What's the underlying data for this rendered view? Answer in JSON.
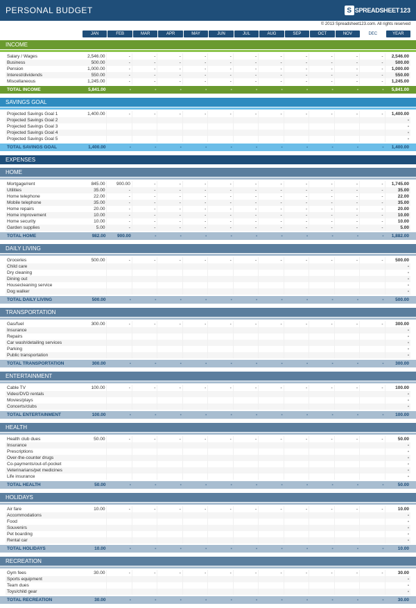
{
  "title": "PERSONAL BUDGET",
  "logo": {
    "s": "S",
    "text": "SPREADSHEET",
    "nums": "123"
  },
  "copyright": "© 2013 Spreadsheet123.com. All rights reserved",
  "months": [
    "JAN",
    "FEB",
    "MAR",
    "APR",
    "MAY",
    "JUN",
    "JUL",
    "AUG",
    "SEP",
    "OCT",
    "NOV",
    "DEC",
    "YEAR"
  ],
  "colors": {
    "header": "#1f4e79",
    "income_hdr": "#6a9a2f",
    "income_bar": "#8bc34a",
    "income_total": "#6a9a2f",
    "savings_hdr": "#2e8bc0",
    "savings_bar": "#6bbde8",
    "savings_total": "#6bbde8",
    "expenses_hdr": "#1f4e79",
    "sub_hdr": "#5b7e9e",
    "sub_bar": "#a8bdd0",
    "sub_total": "#a8bdd0"
  },
  "sections": [
    {
      "key": "income",
      "title": "INCOME",
      "hdr_color": "#6a9a2f",
      "bar_color": "#8bc34a",
      "total_bg": "#6a9a2f",
      "total_fg": "#ffffff",
      "rows": [
        {
          "label": "Salary / Wages",
          "vals": [
            "2,546.00",
            "-",
            "-",
            "-",
            "-",
            "-",
            "-",
            "-",
            "-",
            "-",
            "-",
            "-",
            "2,546.00"
          ]
        },
        {
          "label": "Business",
          "vals": [
            "500.00",
            "-",
            "-",
            "-",
            "-",
            "-",
            "-",
            "-",
            "-",
            "-",
            "-",
            "-",
            "500.00"
          ]
        },
        {
          "label": "Pension",
          "vals": [
            "1,000.00",
            "-",
            "-",
            "-",
            "-",
            "-",
            "-",
            "-",
            "-",
            "-",
            "-",
            "-",
            "1,000.00"
          ]
        },
        {
          "label": "Interest/dividends",
          "vals": [
            "550.00",
            "-",
            "-",
            "-",
            "-",
            "-",
            "-",
            "-",
            "-",
            "-",
            "-",
            "-",
            "550.00"
          ]
        },
        {
          "label": "Miscellaneous",
          "vals": [
            "1,245.00",
            "-",
            "-",
            "-",
            "-",
            "-",
            "-",
            "-",
            "-",
            "-",
            "-",
            "-",
            "1,245.00"
          ]
        }
      ],
      "total": {
        "label": "TOTAL INCOME",
        "vals": [
          "5,841.00",
          "-",
          "-",
          "-",
          "-",
          "-",
          "-",
          "-",
          "-",
          "-",
          "-",
          "-",
          "5,841.00"
        ]
      }
    },
    {
      "key": "savings",
      "title": "SAVINGS GOAL",
      "hdr_color": "#2e8bc0",
      "bar_color": "#6bbde8",
      "total_bg": "#6bbde8",
      "total_fg": "#1f4e79",
      "rows": [
        {
          "label": "Projected Savings Goal 1",
          "vals": [
            "1,400.00",
            "-",
            "-",
            "-",
            "-",
            "-",
            "-",
            "-",
            "-",
            "-",
            "-",
            "-",
            "1,400.00"
          ]
        },
        {
          "label": "Projected Savings Goal 2",
          "vals": [
            "",
            "",
            "",
            "",
            "",
            "",
            "",
            "",
            "",
            "",
            "",
            "",
            "-"
          ]
        },
        {
          "label": "Projected Savings Goal 3",
          "vals": [
            "",
            "",
            "",
            "",
            "",
            "",
            "",
            "",
            "",
            "",
            "",
            "",
            "-"
          ]
        },
        {
          "label": "Projected Savings Goal 4",
          "vals": [
            "",
            "",
            "",
            "",
            "",
            "",
            "",
            "",
            "",
            "",
            "",
            "",
            "-"
          ]
        },
        {
          "label": "Projected Savings Goal 5",
          "vals": [
            "",
            "",
            "",
            "",
            "",
            "",
            "",
            "",
            "",
            "",
            "",
            "",
            "-"
          ]
        }
      ],
      "total": {
        "label": "TOTAL SAVINGS GOAL",
        "vals": [
          "1,400.00",
          "-",
          "-",
          "-",
          "-",
          "-",
          "-",
          "-",
          "-",
          "-",
          "-",
          "-",
          "1,400.00"
        ]
      }
    }
  ],
  "expenses_title": "EXPENSES",
  "expense_sections": [
    {
      "title": "HOME",
      "rows": [
        {
          "label": "Mortgage/rent",
          "vals": [
            "845.00",
            "900.00",
            "-",
            "-",
            "-",
            "-",
            "-",
            "-",
            "-",
            "-",
            "-",
            "-",
            "1,745.00"
          ]
        },
        {
          "label": "Utilities",
          "vals": [
            "35.00",
            "-",
            "-",
            "-",
            "-",
            "-",
            "-",
            "-",
            "-",
            "-",
            "-",
            "-",
            "35.00"
          ]
        },
        {
          "label": "Home telephone",
          "vals": [
            "22.00",
            "-",
            "-",
            "-",
            "-",
            "-",
            "-",
            "-",
            "-",
            "-",
            "-",
            "-",
            "22.00"
          ]
        },
        {
          "label": "Mobile telephone",
          "vals": [
            "35.00",
            "-",
            "-",
            "-",
            "-",
            "-",
            "-",
            "-",
            "-",
            "-",
            "-",
            "-",
            "35.00"
          ]
        },
        {
          "label": "Home repairs",
          "vals": [
            "20.00",
            "-",
            "-",
            "-",
            "-",
            "-",
            "-",
            "-",
            "-",
            "-",
            "-",
            "-",
            "20.00"
          ]
        },
        {
          "label": "Home improvement",
          "vals": [
            "10.00",
            "-",
            "-",
            "-",
            "-",
            "-",
            "-",
            "-",
            "-",
            "-",
            "-",
            "-",
            "10.00"
          ]
        },
        {
          "label": "Home security",
          "vals": [
            "10.00",
            "-",
            "-",
            "-",
            "-",
            "-",
            "-",
            "-",
            "-",
            "-",
            "-",
            "-",
            "10.00"
          ]
        },
        {
          "label": "Garden supplies",
          "vals": [
            "5.00",
            "-",
            "-",
            "-",
            "-",
            "-",
            "-",
            "-",
            "-",
            "-",
            "-",
            "-",
            "5.00"
          ]
        }
      ],
      "total": {
        "label": "TOTAL HOME",
        "vals": [
          "982.00",
          "900.00",
          "-",
          "-",
          "-",
          "-",
          "-",
          "-",
          "-",
          "-",
          "-",
          "-",
          "1,882.00"
        ]
      }
    },
    {
      "title": "DAILY LIVING",
      "rows": [
        {
          "label": "Groceries",
          "vals": [
            "500.00",
            "-",
            "-",
            "-",
            "-",
            "-",
            "-",
            "-",
            "-",
            "-",
            "-",
            "-",
            "500.00"
          ]
        },
        {
          "label": "Child care",
          "vals": [
            "",
            "",
            "",
            "",
            "",
            "",
            "",
            "",
            "",
            "",
            "",
            "",
            "-"
          ]
        },
        {
          "label": "Dry cleaning",
          "vals": [
            "",
            "",
            "",
            "",
            "",
            "",
            "",
            "",
            "",
            "",
            "",
            "",
            "-"
          ]
        },
        {
          "label": "Dining out",
          "vals": [
            "",
            "",
            "",
            "",
            "",
            "",
            "",
            "",
            "",
            "",
            "",
            "",
            "-"
          ]
        },
        {
          "label": "Housecleaning service",
          "vals": [
            "",
            "",
            "",
            "",
            "",
            "",
            "",
            "",
            "",
            "",
            "",
            "",
            "-"
          ]
        },
        {
          "label": "Dog walker",
          "vals": [
            "",
            "",
            "",
            "",
            "",
            "",
            "",
            "",
            "",
            "",
            "",
            "",
            "-"
          ]
        }
      ],
      "total": {
        "label": "TOTAL DAILY LIVING",
        "vals": [
          "500.00",
          "-",
          "-",
          "-",
          "-",
          "-",
          "-",
          "-",
          "-",
          "-",
          "-",
          "-",
          "500.00"
        ]
      }
    },
    {
      "title": "TRANSPORTATION",
      "rows": [
        {
          "label": "Gas/fuel",
          "vals": [
            "300.00",
            "-",
            "-",
            "-",
            "-",
            "-",
            "-",
            "-",
            "-",
            "-",
            "-",
            "-",
            "300.00"
          ]
        },
        {
          "label": "Insurance",
          "vals": [
            "",
            "",
            "",
            "",
            "",
            "",
            "",
            "",
            "",
            "",
            "",
            "",
            "-"
          ]
        },
        {
          "label": "Repairs",
          "vals": [
            "",
            "",
            "",
            "",
            "",
            "",
            "",
            "",
            "",
            "",
            "",
            "",
            "-"
          ]
        },
        {
          "label": "Car wash/detailing services",
          "vals": [
            "",
            "",
            "",
            "",
            "",
            "",
            "",
            "",
            "",
            "",
            "",
            "",
            "-"
          ]
        },
        {
          "label": "Parking",
          "vals": [
            "",
            "",
            "",
            "",
            "",
            "",
            "",
            "",
            "",
            "",
            "",
            "",
            "-"
          ]
        },
        {
          "label": "Public transportation",
          "vals": [
            "",
            "",
            "",
            "",
            "",
            "",
            "",
            "",
            "",
            "",
            "",
            "",
            "-"
          ]
        }
      ],
      "total": {
        "label": "TOTAL TRANSPORTATION",
        "vals": [
          "300.00",
          "-",
          "-",
          "-",
          "-",
          "-",
          "-",
          "-",
          "-",
          "-",
          "-",
          "-",
          "300.00"
        ]
      }
    },
    {
      "title": "ENTERTAINMENT",
      "rows": [
        {
          "label": "Cable TV",
          "vals": [
            "100.00",
            "-",
            "-",
            "-",
            "-",
            "-",
            "-",
            "-",
            "-",
            "-",
            "-",
            "-",
            "100.00"
          ]
        },
        {
          "label": "Video/DVD rentals",
          "vals": [
            "",
            "",
            "",
            "",
            "",
            "",
            "",
            "",
            "",
            "",
            "",
            "",
            "-"
          ]
        },
        {
          "label": "Movies/plays",
          "vals": [
            "",
            "",
            "",
            "",
            "",
            "",
            "",
            "",
            "",
            "",
            "",
            "",
            "-"
          ]
        },
        {
          "label": "Concerts/clubs",
          "vals": [
            "",
            "",
            "",
            "",
            "",
            "",
            "",
            "",
            "",
            "",
            "",
            "",
            "-"
          ]
        }
      ],
      "total": {
        "label": "TOTAL ENTERTAINMENT",
        "vals": [
          "100.00",
          "-",
          "-",
          "-",
          "-",
          "-",
          "-",
          "-",
          "-",
          "-",
          "-",
          "-",
          "100.00"
        ]
      }
    },
    {
      "title": "HEALTH",
      "rows": [
        {
          "label": "Health club dues",
          "vals": [
            "50.00",
            "-",
            "-",
            "-",
            "-",
            "-",
            "-",
            "-",
            "-",
            "-",
            "-",
            "-",
            "50.00"
          ]
        },
        {
          "label": "Insurance",
          "vals": [
            "",
            "",
            "",
            "",
            "",
            "",
            "",
            "",
            "",
            "",
            "",
            "",
            "-"
          ]
        },
        {
          "label": "Prescriptions",
          "vals": [
            "",
            "",
            "",
            "",
            "",
            "",
            "",
            "",
            "",
            "",
            "",
            "",
            "-"
          ]
        },
        {
          "label": "Over-the-counter drugs",
          "vals": [
            "",
            "",
            "",
            "",
            "",
            "",
            "",
            "",
            "",
            "",
            "",
            "",
            "-"
          ]
        },
        {
          "label": "Co-payments/out-of-pocket",
          "vals": [
            "",
            "",
            "",
            "",
            "",
            "",
            "",
            "",
            "",
            "",
            "",
            "",
            "-"
          ]
        },
        {
          "label": "Veterinarians/pet medicines",
          "vals": [
            "",
            "",
            "",
            "",
            "",
            "",
            "",
            "",
            "",
            "",
            "",
            "",
            "-"
          ]
        },
        {
          "label": "Life insurance",
          "vals": [
            "",
            "",
            "",
            "",
            "",
            "",
            "",
            "",
            "",
            "",
            "",
            "",
            "-"
          ]
        }
      ],
      "total": {
        "label": "TOTAL HEALTH",
        "vals": [
          "50.00",
          "-",
          "-",
          "-",
          "-",
          "-",
          "-",
          "-",
          "-",
          "-",
          "-",
          "-",
          "50.00"
        ]
      }
    },
    {
      "title": "HOLIDAYS",
      "rows": [
        {
          "label": "Air fare",
          "vals": [
            "10.00",
            "-",
            "-",
            "-",
            "-",
            "-",
            "-",
            "-",
            "-",
            "-",
            "-",
            "-",
            "10.00"
          ]
        },
        {
          "label": "Accommodations",
          "vals": [
            "",
            "",
            "",
            "",
            "",
            "",
            "",
            "",
            "",
            "",
            "",
            "",
            "-"
          ]
        },
        {
          "label": "Food",
          "vals": [
            "",
            "",
            "",
            "",
            "",
            "",
            "",
            "",
            "",
            "",
            "",
            "",
            "-"
          ]
        },
        {
          "label": "Souvenirs",
          "vals": [
            "",
            "",
            "",
            "",
            "",
            "",
            "",
            "",
            "",
            "",
            "",
            "",
            "-"
          ]
        },
        {
          "label": "Pet boarding",
          "vals": [
            "",
            "",
            "",
            "",
            "",
            "",
            "",
            "",
            "",
            "",
            "",
            "",
            "-"
          ]
        },
        {
          "label": "Rental car",
          "vals": [
            "",
            "",
            "",
            "",
            "",
            "",
            "",
            "",
            "",
            "",
            "",
            "",
            "-"
          ]
        }
      ],
      "total": {
        "label": "TOTAL HOLIDAYS",
        "vals": [
          "10.00",
          "-",
          "-",
          "-",
          "-",
          "-",
          "-",
          "-",
          "-",
          "-",
          "-",
          "-",
          "10.00"
        ]
      }
    },
    {
      "title": "RECREATION",
      "rows": [
        {
          "label": "Gym fees",
          "vals": [
            "30.00",
            "-",
            "-",
            "-",
            "-",
            "-",
            "-",
            "-",
            "-",
            "-",
            "-",
            "-",
            "30.00"
          ]
        },
        {
          "label": "Sports equipment",
          "vals": [
            "",
            "",
            "",
            "",
            "",
            "",
            "",
            "",
            "",
            "",
            "",
            "",
            "-"
          ]
        },
        {
          "label": "Team dues",
          "vals": [
            "",
            "",
            "",
            "",
            "",
            "",
            "",
            "",
            "",
            "",
            "",
            "",
            "-"
          ]
        },
        {
          "label": "Toys/child gear",
          "vals": [
            "",
            "",
            "",
            "",
            "",
            "",
            "",
            "",
            "",
            "",
            "",
            "",
            "-"
          ]
        }
      ],
      "total": {
        "label": "TOTAL RECREATION",
        "vals": [
          "30.00",
          "-",
          "-",
          "-",
          "-",
          "-",
          "-",
          "-",
          "-",
          "-",
          "-",
          "-",
          "30.00"
        ]
      }
    }
  ]
}
